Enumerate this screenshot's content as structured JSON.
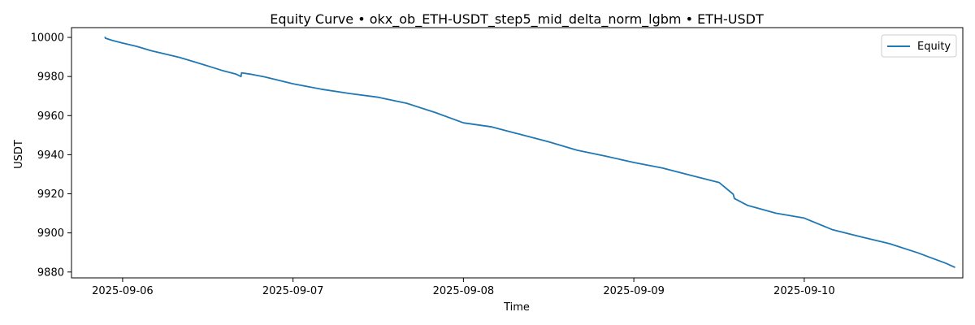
{
  "chart_data": {
    "type": "line",
    "title": "Equity Curve • okx_ob_ETH-USDT_step5_mid_delta_norm_lgbm • ETH-USDT",
    "xlabel": "Time",
    "ylabel": "USDT",
    "xlim": [
      "2025-09-05 16:48",
      "2025-09-10 22:20"
    ],
    "ylim": [
      9877,
      10005
    ],
    "x_ticks": [
      "2025-09-06",
      "2025-09-07",
      "2025-09-08",
      "2025-09-09",
      "2025-09-10"
    ],
    "y_ticks": [
      9880,
      9900,
      9920,
      9940,
      9960,
      9980,
      10000
    ],
    "grid": false,
    "legend": "top-right",
    "series": [
      {
        "name": "Equity",
        "color": "#1f77b4",
        "x": [
          "2025-09-05 21:30",
          "2025-09-05 21:35",
          "2025-09-05 22:30",
          "2025-09-06 00:00",
          "2025-09-06 02:00",
          "2025-09-06 04:00",
          "2025-09-06 06:00",
          "2025-09-06 08:00",
          "2025-09-06 10:00",
          "2025-09-06 12:00",
          "2025-09-06 14:00",
          "2025-09-06 16:00",
          "2025-09-06 16:40",
          "2025-09-06 16:45",
          "2025-09-06 18:00",
          "2025-09-06 20:00",
          "2025-09-07 00:00",
          "2025-09-07 04:00",
          "2025-09-07 08:00",
          "2025-09-07 12:00",
          "2025-09-07 16:00",
          "2025-09-07 20:00",
          "2025-09-08 00:00",
          "2025-09-08 04:00",
          "2025-09-08 08:00",
          "2025-09-08 12:00",
          "2025-09-08 16:00",
          "2025-09-08 20:00",
          "2025-09-09 00:00",
          "2025-09-09 04:00",
          "2025-09-09 08:00",
          "2025-09-09 12:00",
          "2025-09-09 14:00",
          "2025-09-09 14:10",
          "2025-09-09 16:00",
          "2025-09-09 20:00",
          "2025-09-10 00:00",
          "2025-09-10 04:00",
          "2025-09-10 08:00",
          "2025-09-10 12:00",
          "2025-09-10 16:00",
          "2025-09-10 20:00",
          "2025-09-10 21:15"
        ],
        "y": [
          10000.3,
          9999.6,
          9998.5,
          9997.1,
          9995.4,
          9993.2,
          9991.5,
          9989.8,
          9987.6,
          9985.4,
          9983.1,
          9981.2,
          9980.0,
          9981.9,
          9981.2,
          9979.8,
          9976.3,
          9973.5,
          9971.3,
          9969.4,
          9966.3,
          9961.6,
          9956.3,
          9954.2,
          9950.4,
          9946.6,
          9942.3,
          9939.3,
          9936.0,
          9933.2,
          9929.5,
          9925.8,
          9919.8,
          9917.6,
          9914.1,
          9910.1,
          9907.6,
          9901.6,
          9898.0,
          9894.5,
          9889.8,
          9884.4,
          9882.3
        ]
      }
    ]
  }
}
